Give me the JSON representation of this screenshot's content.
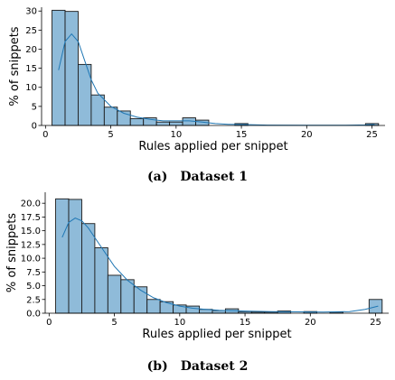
{
  "chart_data": [
    {
      "type": "bar",
      "caption_tag": "(a)",
      "caption_text": "Dataset 1",
      "xlabel": "Rules applied per snippet",
      "ylabel": "% of snippets",
      "xlim": [
        -0.3,
        26.0
      ],
      "ylim": [
        0,
        31
      ],
      "xticks": [
        0,
        5,
        10,
        15,
        20,
        25
      ],
      "yticks": [
        0,
        5,
        10,
        15,
        20,
        25,
        30
      ],
      "bin_width": 1.0,
      "bins": [
        {
          "x0": 0.5,
          "value": 30.2
        },
        {
          "x0": 1.5,
          "value": 29.9
        },
        {
          "x0": 2.5,
          "value": 16.0
        },
        {
          "x0": 3.5,
          "value": 8.0
        },
        {
          "x0": 4.5,
          "value": 4.8
        },
        {
          "x0": 5.5,
          "value": 3.8
        },
        {
          "x0": 6.5,
          "value": 1.8
        },
        {
          "x0": 7.5,
          "value": 2.0
        },
        {
          "x0": 8.5,
          "value": 0.9
        },
        {
          "x0": 9.5,
          "value": 0.9
        },
        {
          "x0": 10.5,
          "value": 2.0
        },
        {
          "x0": 11.5,
          "value": 1.4
        },
        {
          "x0": 14.5,
          "value": 0.5
        },
        {
          "x0": 24.5,
          "value": 0.5
        }
      ],
      "kde": [
        [
          1,
          14.5
        ],
        [
          1.5,
          22
        ],
        [
          2,
          24
        ],
        [
          2.5,
          22
        ],
        [
          3,
          17
        ],
        [
          3.5,
          12
        ],
        [
          4,
          8.5
        ],
        [
          5,
          5
        ],
        [
          6,
          3.2
        ],
        [
          7,
          2.2
        ],
        [
          8,
          1.6
        ],
        [
          9,
          1.2
        ],
        [
          10,
          1.2
        ],
        [
          11,
          1.2
        ],
        [
          12,
          0.9
        ],
        [
          13,
          0.5
        ],
        [
          14,
          0.3
        ],
        [
          15,
          0.25
        ],
        [
          17,
          0.1
        ],
        [
          20,
          0.05
        ],
        [
          23,
          0.05
        ],
        [
          24.5,
          0.15
        ],
        [
          25.2,
          0.25
        ]
      ]
    },
    {
      "type": "bar",
      "caption_tag": "(b)",
      "caption_text": "Dataset 2",
      "xlabel": "Rules applied per snippet",
      "ylabel": "% of snippets",
      "xlim": [
        -0.3,
        26.0
      ],
      "ylim": [
        0,
        22
      ],
      "xticks": [
        0,
        5,
        10,
        15,
        20,
        25
      ],
      "yticks": [
        0.0,
        2.5,
        5.0,
        7.5,
        10.0,
        12.5,
        15.0,
        17.5,
        20.0
      ],
      "ytick_labels": [
        "0.0",
        "2.5",
        "5.0",
        "7.5",
        "10.0",
        "12.5",
        "15.0",
        "17.5",
        "20.0"
      ],
      "bin_width": 1.0,
      "bins": [
        {
          "x0": 0.5,
          "value": 20.8
        },
        {
          "x0": 1.5,
          "value": 20.7
        },
        {
          "x0": 2.5,
          "value": 16.3
        },
        {
          "x0": 3.5,
          "value": 11.9
        },
        {
          "x0": 4.5,
          "value": 6.9
        },
        {
          "x0": 5.5,
          "value": 6.1
        },
        {
          "x0": 6.5,
          "value": 4.8
        },
        {
          "x0": 7.5,
          "value": 2.5
        },
        {
          "x0": 8.5,
          "value": 2.1
        },
        {
          "x0": 9.5,
          "value": 1.5
        },
        {
          "x0": 10.5,
          "value": 1.3
        },
        {
          "x0": 11.5,
          "value": 0.7
        },
        {
          "x0": 12.5,
          "value": 0.5
        },
        {
          "x0": 13.5,
          "value": 0.8
        },
        {
          "x0": 14.5,
          "value": 0.3
        },
        {
          "x0": 15.5,
          "value": 0.2
        },
        {
          "x0": 16.5,
          "value": 0.2
        },
        {
          "x0": 17.5,
          "value": 0.4
        },
        {
          "x0": 19.5,
          "value": 0.3
        },
        {
          "x0": 21.5,
          "value": 0.2
        },
        {
          "x0": 24.5,
          "value": 2.5
        }
      ],
      "kde": [
        [
          1,
          13.8
        ],
        [
          1.5,
          16.5
        ],
        [
          2,
          17.3
        ],
        [
          2.5,
          16.8
        ],
        [
          3,
          15.5
        ],
        [
          4,
          12
        ],
        [
          5,
          8.5
        ],
        [
          6,
          6
        ],
        [
          7,
          4.2
        ],
        [
          8,
          2.8
        ],
        [
          9,
          1.9
        ],
        [
          10,
          1.3
        ],
        [
          11,
          0.9
        ],
        [
          12,
          0.7
        ],
        [
          13,
          0.55
        ],
        [
          14,
          0.45
        ],
        [
          15,
          0.4
        ],
        [
          17,
          0.3
        ],
        [
          19,
          0.25
        ],
        [
          21,
          0.2
        ],
        [
          23,
          0.3
        ],
        [
          24.2,
          0.7
        ],
        [
          25.2,
          1.3
        ]
      ]
    }
  ]
}
